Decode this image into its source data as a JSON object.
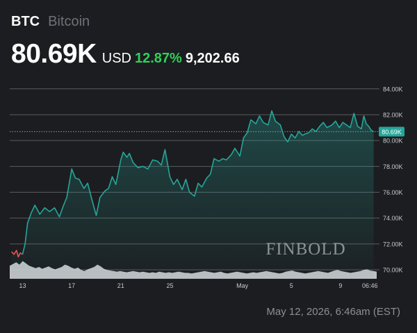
{
  "header": {
    "ticker": "BTC",
    "name": "Bitcoin",
    "price": "80.69K",
    "currency": "USD",
    "change_pct": "12.87%",
    "change_abs": "9,202.66"
  },
  "watermark": "FINBOLD",
  "timestamp": "May 12, 2026, 6:46am (EST)",
  "colors": {
    "background": "#1c1d20",
    "line": "#26a69a",
    "line_down": "#ef5350",
    "positive": "#2fd15a",
    "volume": "#cfd1d4"
  },
  "chart_data": {
    "type": "line",
    "title": "",
    "xlabel": "",
    "ylabel": "",
    "ylim": [
      69.2,
      85.6
    ],
    "y_ticks": [
      "84.00K",
      "82.00K",
      "80.00K",
      "78.00K",
      "76.00K",
      "74.00K",
      "72.00K",
      "70.00K"
    ],
    "y_tick_values": [
      84,
      82,
      80,
      78,
      76,
      74,
      72,
      70
    ],
    "x_ticks": [
      "13",
      "17",
      "21",
      "25",
      "May",
      "5",
      "9",
      "06:46"
    ],
    "x_tick_positions": [
      0,
      4,
      8,
      12,
      17.9,
      21.9,
      25.9,
      28.3
    ],
    "current_value": 80.69,
    "current_label": "80.69K",
    "x": [
      -0.9,
      -0.7,
      -0.5,
      -0.35,
      -0.2,
      0.0,
      0.2,
      0.4,
      0.7,
      1.0,
      1.4,
      1.8,
      2.2,
      2.6,
      3.0,
      3.3,
      3.6,
      4.0,
      4.3,
      4.6,
      5.0,
      5.3,
      5.6,
      6.0,
      6.3,
      6.7,
      7.0,
      7.3,
      7.6,
      8.0,
      8.2,
      8.5,
      8.7,
      9.0,
      9.4,
      9.8,
      10.2,
      10.6,
      11.0,
      11.3,
      11.6,
      12.0,
      12.3,
      12.6,
      13.0,
      13.3,
      13.6,
      14.0,
      14.3,
      14.6,
      15.0,
      15.3,
      15.6,
      16.0,
      16.3,
      16.6,
      17.0,
      17.3,
      17.7,
      18.0,
      18.3,
      18.6,
      19.0,
      19.3,
      19.6,
      20.0,
      20.3,
      20.6,
      21.0,
      21.3,
      21.6,
      21.9,
      22.2,
      22.5,
      22.8,
      23.0,
      23.3,
      23.6,
      23.9,
      24.2,
      24.5,
      24.8,
      25.2,
      25.5,
      25.8,
      26.1,
      26.4,
      26.7,
      27.0,
      27.3,
      27.6,
      27.8,
      28.0,
      28.2,
      28.4,
      28.6
    ],
    "values": [
      71.4,
      71.2,
      71.5,
      71.0,
      71.3,
      71.2,
      72.0,
      73.6,
      74.4,
      75.0,
      74.3,
      74.8,
      74.5,
      74.8,
      74.1,
      74.9,
      75.6,
      77.8,
      77.1,
      77.0,
      76.3,
      76.7,
      75.6,
      74.2,
      75.6,
      76.1,
      76.3,
      77.2,
      76.6,
      78.5,
      79.1,
      78.7,
      79.0,
      78.3,
      77.9,
      78.0,
      77.8,
      78.5,
      78.4,
      78.1,
      79.3,
      77.2,
      76.6,
      77.0,
      76.2,
      77.0,
      76.0,
      75.7,
      76.7,
      76.4,
      77.1,
      77.4,
      78.6,
      78.4,
      78.6,
      78.5,
      78.9,
      79.4,
      78.8,
      80.2,
      80.6,
      81.6,
      81.3,
      81.9,
      81.4,
      81.2,
      82.3,
      81.5,
      81.2,
      80.3,
      79.9,
      80.5,
      80.2,
      80.7,
      80.4,
      80.5,
      80.6,
      80.9,
      80.7,
      81.1,
      81.4,
      81.0,
      81.2,
      81.5,
      81.0,
      81.4,
      81.2,
      81.0,
      82.1,
      81.1,
      80.9,
      81.9,
      81.3,
      81.1,
      80.8,
      80.69
    ],
    "volume_values": [
      22,
      25,
      28,
      24,
      30,
      26,
      22,
      20,
      18,
      20,
      17,
      19,
      21,
      18,
      16,
      18,
      20,
      24,
      22,
      19,
      17,
      19,
      15,
      13,
      16,
      18,
      20,
      24,
      21,
      17,
      15,
      14,
      13,
      12,
      13,
      12,
      11,
      12,
      13,
      12,
      11,
      12,
      11,
      10,
      11,
      10,
      12,
      11,
      10,
      11,
      10,
      11,
      12,
      11,
      10,
      10,
      9,
      10,
      11,
      12,
      13,
      12,
      11,
      10,
      11,
      12,
      10,
      9,
      10,
      11,
      12,
      11,
      10,
      9,
      10,
      11,
      10,
      11,
      12,
      13,
      12,
      11,
      10,
      9,
      10,
      12,
      13,
      14,
      12,
      11,
      10,
      9,
      10,
      11,
      12,
      13,
      12,
      11,
      10,
      12,
      14,
      15,
      13,
      12,
      11,
      10,
      11,
      12,
      13,
      15,
      16,
      14,
      13,
      12
    ]
  }
}
